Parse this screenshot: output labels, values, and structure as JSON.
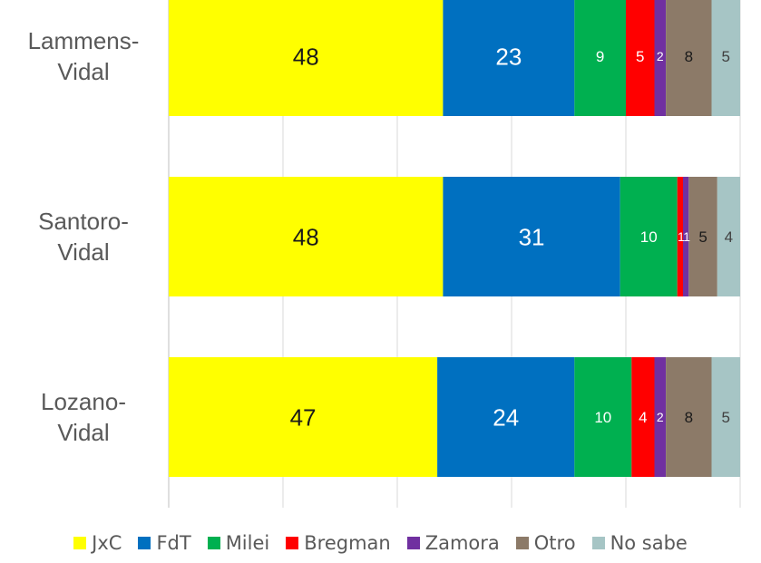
{
  "chart_data": {
    "type": "bar",
    "orientation": "horizontal",
    "stacked": true,
    "categories": [
      "Lammens-\nVidal",
      "Santoro-\nVidal",
      "Lozano-\nVidal"
    ],
    "series": [
      {
        "name": "JxC",
        "color": "#FFFF00",
        "label_color": "#1a1a1a",
        "values": [
          48,
          48,
          47
        ]
      },
      {
        "name": "FdT",
        "color": "#0070C0",
        "label_color": "#ffffff",
        "values": [
          23,
          31,
          24
        ]
      },
      {
        "name": "Milei",
        "color": "#00B050",
        "label_color": "#ffffff",
        "values": [
          9,
          10,
          10
        ]
      },
      {
        "name": "Bregman",
        "color": "#FF0000",
        "label_color": "#ffffff",
        "values": [
          5,
          1,
          4
        ]
      },
      {
        "name": "Zamora",
        "color": "#7030A0",
        "label_color": "#ffffff",
        "values": [
          2,
          1,
          2
        ]
      },
      {
        "name": "Otro",
        "color": "#8C7A68",
        "label_color": "#1a1a1a",
        "values": [
          8,
          5,
          8
        ]
      },
      {
        "name": "No sabe",
        "color": "#A6C5C5",
        "label_color": "#404040",
        "values": [
          5,
          4,
          5
        ]
      }
    ],
    "xlim": [
      0,
      100
    ],
    "grid": true,
    "legend_position": "bottom"
  }
}
